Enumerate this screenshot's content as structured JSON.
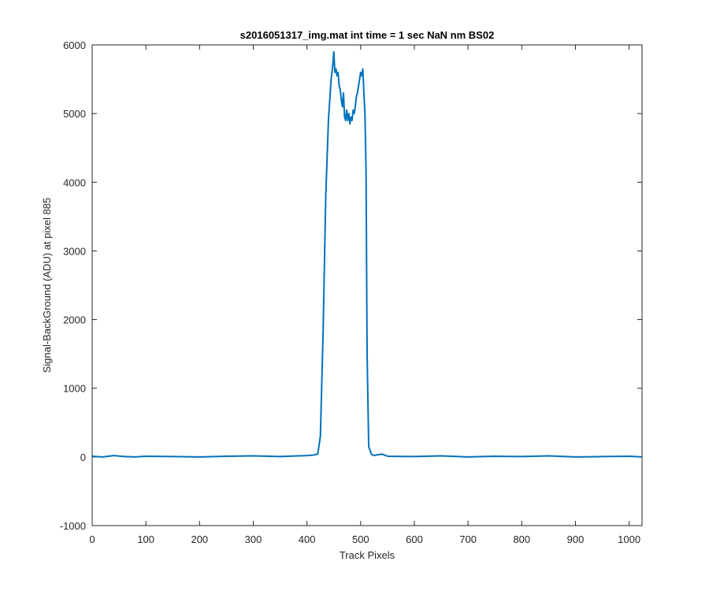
{
  "chart_data": {
    "type": "line",
    "title": "s2016051317_img.mat int time = 1 sec  NaN nm BS02",
    "xlabel": "Track Pixels",
    "ylabel": "Signal-BackGround (ADU) at pixel 885",
    "xlim": [
      0,
      1024
    ],
    "ylim": [
      -1000,
      6000
    ],
    "xticks": [
      0,
      100,
      200,
      300,
      400,
      500,
      600,
      700,
      800,
      900,
      1000
    ],
    "yticks": [
      -1000,
      0,
      1000,
      2000,
      3000,
      4000,
      5000,
      6000
    ],
    "grid": false,
    "series": [
      {
        "color": "#0072bd",
        "x": [
          0,
          20,
          40,
          60,
          80,
          100,
          150,
          200,
          250,
          300,
          350,
          400,
          410,
          420,
          425,
          430,
          435,
          440,
          445,
          448,
          450,
          452,
          454,
          456,
          458,
          460,
          462,
          464,
          466,
          468,
          470,
          472,
          474,
          476,
          478,
          480,
          482,
          484,
          486,
          488,
          490,
          492,
          494,
          496,
          498,
          500,
          502,
          504,
          506,
          508,
          510,
          512,
          515,
          520,
          525,
          530,
          540,
          550,
          600,
          650,
          700,
          750,
          800,
          850,
          900,
          950,
          1000,
          1024
        ],
        "y": [
          10,
          0,
          20,
          5,
          0,
          10,
          5,
          0,
          10,
          15,
          5,
          20,
          25,
          40,
          300,
          1800,
          3800,
          4900,
          5500,
          5700,
          5900,
          5600,
          5650,
          5550,
          5600,
          5400,
          5350,
          5200,
          5100,
          5300,
          4950,
          4900,
          5050,
          4900,
          5000,
          4850,
          4950,
          4900,
          5050,
          5000,
          5100,
          5250,
          5300,
          5400,
          5500,
          5600,
          5550,
          5650,
          5300,
          5000,
          4200,
          1500,
          150,
          40,
          20,
          30,
          40,
          10,
          5,
          15,
          0,
          10,
          5,
          15,
          0,
          5,
          10,
          0
        ]
      }
    ]
  }
}
